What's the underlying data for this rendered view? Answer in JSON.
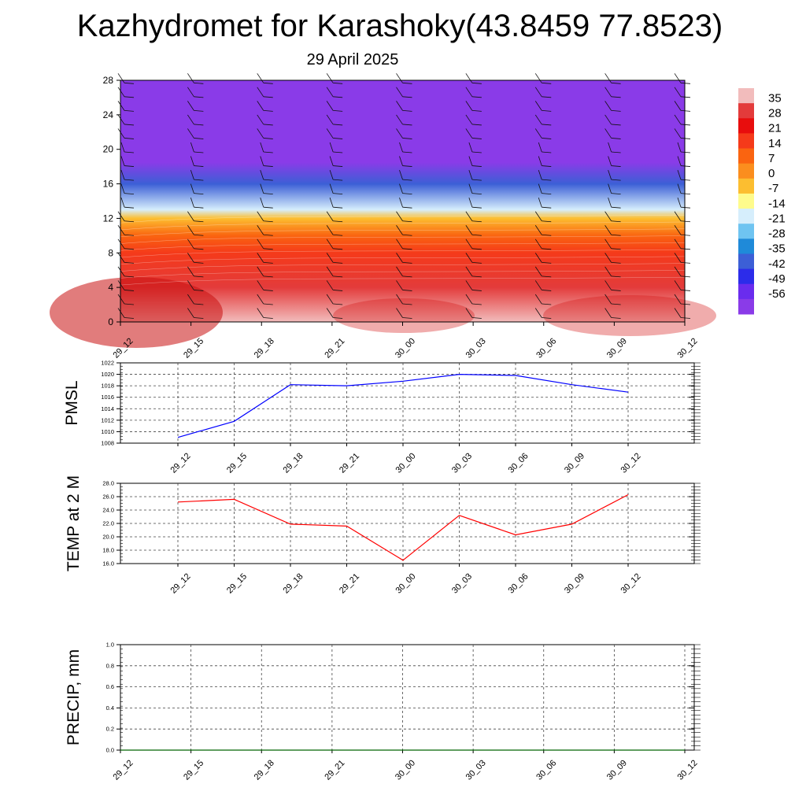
{
  "header": {
    "title": "Kazhydromet for Karashoky(43.8459 77.8523)",
    "date": "29 April 2025"
  },
  "colors": {
    "pmsl_line": "#0000ff",
    "temp_line": "#ff0000",
    "precip_line": "#006400",
    "grid": "#555555"
  },
  "chart_data": [
    {
      "type": "heatmap",
      "title": "",
      "x_tick_labels": [
        "29_12",
        "29_15",
        "29_18",
        "29_21",
        "30_00",
        "30_03",
        "30_06",
        "30_09",
        "30_12"
      ],
      "y_ticks": [
        0,
        4,
        8,
        12,
        16,
        20,
        24,
        28
      ],
      "ylim": [
        0,
        28
      ],
      "colorbar_labels": [
        "35",
        "28",
        "21",
        "14",
        "7",
        "0",
        "-7",
        "-14",
        "-21",
        "-28",
        "-35",
        "-42",
        "-49",
        "-56"
      ],
      "colorbar_colors": [
        "#f2bcbc",
        "#e33b3b",
        "#e80d0d",
        "#f53a1a",
        "#fa6410",
        "#fb8e1e",
        "#fcbe30",
        "#fefb8c",
        "#d6eefc",
        "#6fc4f1",
        "#1f8ad9",
        "#3c5fd6",
        "#2c2cea",
        "#6a2cee",
        "#8a3be8"
      ],
      "temperature_profile": [
        {
          "height": 0,
          "value": 35
        },
        {
          "height": 4,
          "value": 28
        },
        {
          "height": 8,
          "value": 18
        },
        {
          "height": 10,
          "value": 7
        },
        {
          "height": 12,
          "value": -2
        },
        {
          "height": 13,
          "value": -14
        },
        {
          "height": 16,
          "value": -35
        },
        {
          "height": 18.5,
          "value": -56
        },
        {
          "height": 20,
          "value": -60
        },
        {
          "height": 28,
          "value": -60
        }
      ],
      "wind_barbs": true
    },
    {
      "type": "line",
      "ylabel": "PMSL",
      "x_tick_labels": [
        "29_12",
        "29_15",
        "29_18",
        "29_21",
        "30_00",
        "30_03",
        "30_06",
        "30_09",
        "30_12"
      ],
      "y_ticks": [
        1008,
        1010,
        1012,
        1014,
        1016,
        1018,
        1020,
        1022
      ],
      "ylim": [
        1008,
        1022
      ],
      "grid": true,
      "series": [
        {
          "values": [
            1009,
            1011.8,
            1018.2,
            1018,
            1018.8,
            1020,
            1019.8,
            1018.2,
            1016.9
          ]
        }
      ]
    },
    {
      "type": "line",
      "ylabel": "TEMP at 2 M",
      "x_tick_labels": [
        "29_12",
        "29_15",
        "29_18",
        "29_21",
        "30_00",
        "30_03",
        "30_06",
        "30_09",
        "30_12"
      ],
      "y_ticks": [
        "16.0",
        "18.0",
        "20.0",
        "22.0",
        "24.0",
        "26.0",
        "28.0"
      ],
      "ylim": [
        16,
        28
      ],
      "grid": true,
      "series": [
        {
          "values": [
            25.2,
            25.6,
            21.9,
            21.6,
            16.5,
            23.2,
            20.3,
            21.9,
            26.3
          ]
        }
      ]
    },
    {
      "type": "line",
      "ylabel": "PRECIP, mm",
      "x_tick_labels": [
        "29_12",
        "29_15",
        "29_18",
        "29_21",
        "30_00",
        "30_03",
        "30_06",
        "30_09",
        "30_12"
      ],
      "y_ticks": [
        "0.0",
        "0.2",
        "0.4",
        "0.6",
        "0.8",
        "1.0"
      ],
      "ylim": [
        0,
        1
      ],
      "grid": true,
      "series": [
        {
          "values": [
            0,
            0,
            0,
            0,
            0,
            0,
            0,
            0,
            0
          ]
        }
      ]
    }
  ]
}
